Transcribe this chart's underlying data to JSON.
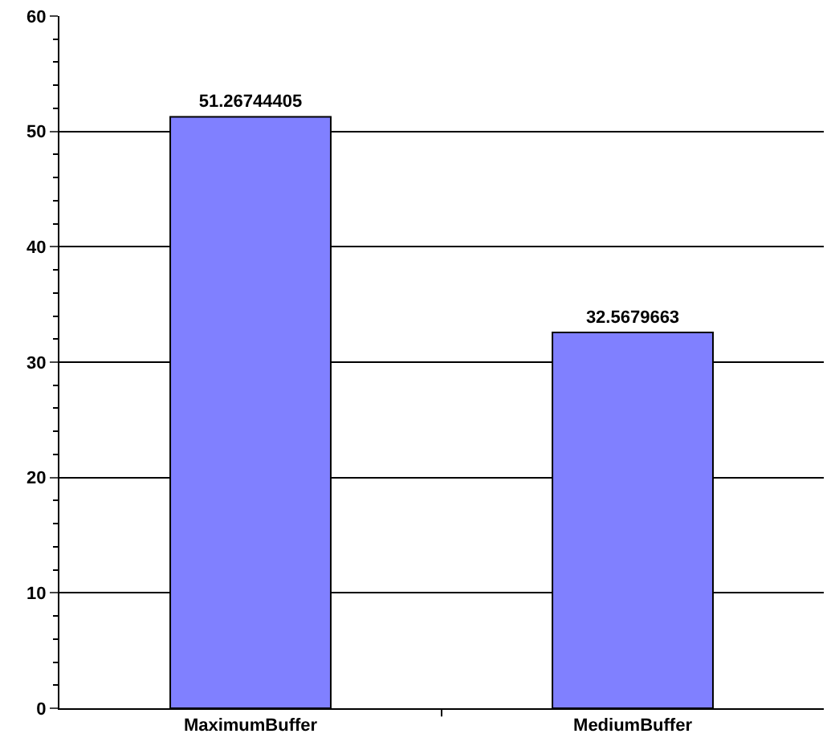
{
  "chart_data": {
    "type": "bar",
    "categories": [
      "MaximumBuffer",
      "MediumBuffer"
    ],
    "values": [
      51.26744405,
      32.5679663
    ],
    "color": "#8080ff",
    "ylim": [
      0,
      60
    ],
    "yticks": [
      0,
      10,
      20,
      30,
      40,
      50,
      60
    ],
    "grid": "y",
    "data_labels": true,
    "legend": false
  }
}
